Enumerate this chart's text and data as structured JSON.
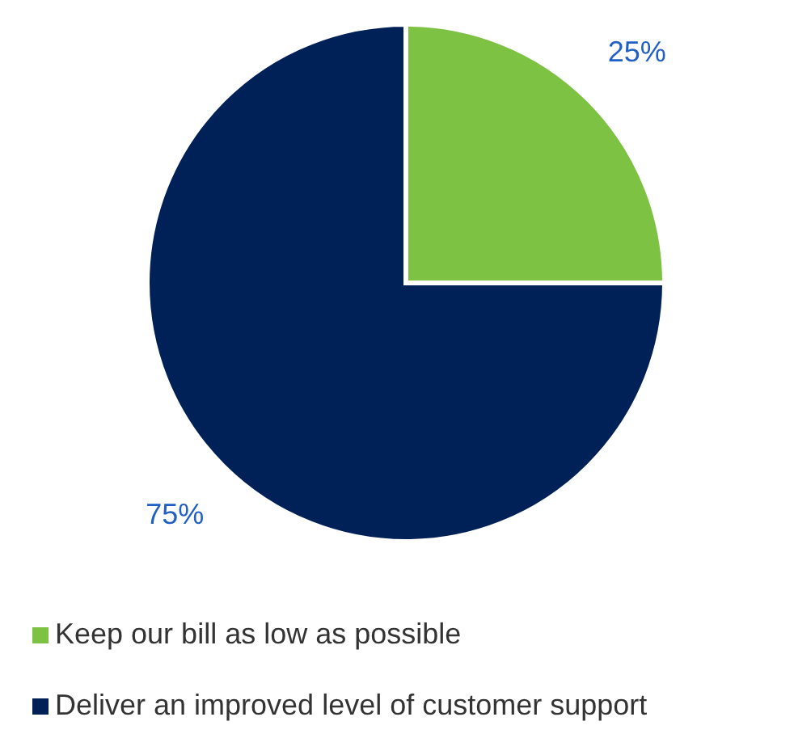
{
  "chart_data": {
    "type": "pie",
    "categories": [
      "Keep our bill as low as possible",
      "Deliver an improved level of customer support"
    ],
    "values": [
      25,
      75
    ],
    "colors": [
      "#7dc242",
      "#002157"
    ],
    "value_labels": [
      "25%",
      "75%"
    ],
    "legend": "bottom"
  }
}
